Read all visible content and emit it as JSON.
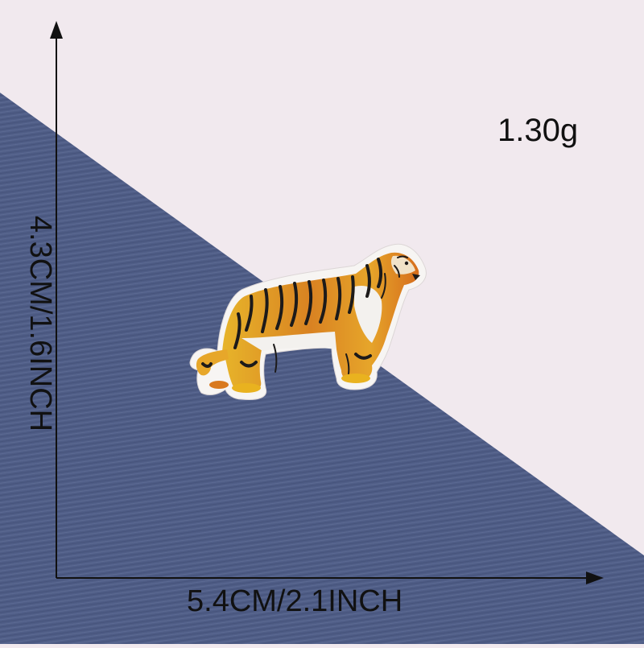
{
  "weight_label": "1.30g",
  "width_label": "5.4CM/2.1INCH",
  "height_label": "4.3CM/1.6INCH",
  "colors": {
    "background": "#f1e9ee",
    "fabric": "#4f5d86",
    "text": "#111111",
    "tiger_orange": "#d9791e",
    "tiger_yellow": "#e9b21f",
    "tiger_stripe": "#1c1a1a",
    "patch_border": "#f7f5f3"
  },
  "icons": [
    "arrow-up-icon",
    "arrow-right-icon",
    "tiger-patch-illustration"
  ]
}
